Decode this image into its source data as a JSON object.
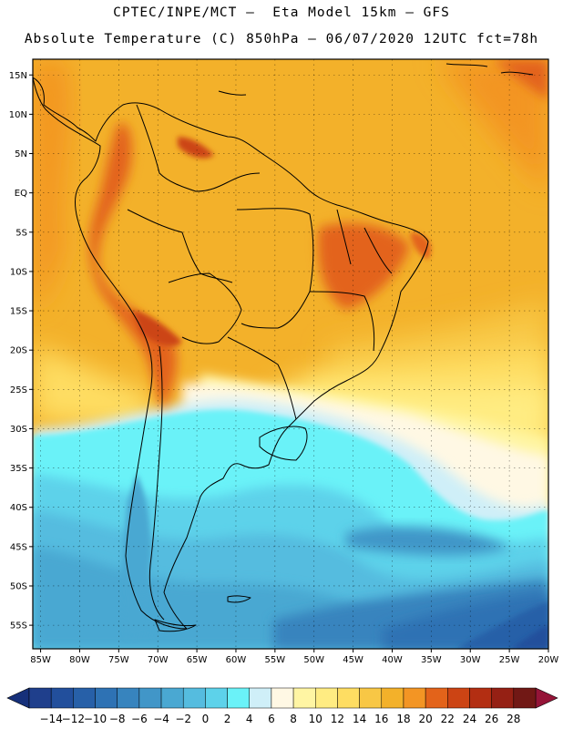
{
  "header": {
    "line1": "CPTEC/INPE/MCT –  Eta Model 15km – GFS",
    "line2": "Absolute Temperature (C) 850hPa – 06/07/2020 12UTC fct=78h"
  },
  "map": {
    "lat_range": [
      -58,
      17
    ],
    "lon_range": [
      -86,
      -20
    ],
    "lat_ticks": [
      {
        "value": 15,
        "label": "15N"
      },
      {
        "value": 10,
        "label": "10N"
      },
      {
        "value": 5,
        "label": "5N"
      },
      {
        "value": 0,
        "label": "EQ"
      },
      {
        "value": -5,
        "label": "5S"
      },
      {
        "value": -10,
        "label": "10S"
      },
      {
        "value": -15,
        "label": "15S"
      },
      {
        "value": -20,
        "label": "20S"
      },
      {
        "value": -25,
        "label": "25S"
      },
      {
        "value": -30,
        "label": "30S"
      },
      {
        "value": -35,
        "label": "35S"
      },
      {
        "value": -40,
        "label": "40S"
      },
      {
        "value": -45,
        "label": "45S"
      },
      {
        "value": -50,
        "label": "50S"
      },
      {
        "value": -55,
        "label": "55S"
      }
    ],
    "lon_ticks": [
      {
        "value": -85,
        "label": "85W"
      },
      {
        "value": -80,
        "label": "80W"
      },
      {
        "value": -75,
        "label": "75W"
      },
      {
        "value": -70,
        "label": "70W"
      },
      {
        "value": -65,
        "label": "65W"
      },
      {
        "value": -60,
        "label": "60W"
      },
      {
        "value": -55,
        "label": "55W"
      },
      {
        "value": -50,
        "label": "50W"
      },
      {
        "value": -45,
        "label": "45W"
      },
      {
        "value": -40,
        "label": "40W"
      },
      {
        "value": -35,
        "label": "35W"
      },
      {
        "value": -30,
        "label": "30W"
      },
      {
        "value": -25,
        "label": "25W"
      },
      {
        "value": -20,
        "label": "20W"
      }
    ]
  },
  "colorbar": {
    "labels": [
      "-14",
      "-12",
      "-10",
      "-8",
      "-6",
      "-4",
      "-2",
      "0",
      "2",
      "4",
      "6",
      "8",
      "10",
      "12",
      "14",
      "16",
      "18",
      "20",
      "22",
      "24",
      "26",
      "28"
    ],
    "colors": [
      "#1f3f8c",
      "#224f9c",
      "#2760a8",
      "#2e72b4",
      "#3784be",
      "#4196c8",
      "#4aa8d2",
      "#55bcdf",
      "#5dd2ea",
      "#6af2f8",
      "#cfeff8",
      "#fff8e4",
      "#fff5a3",
      "#ffec82",
      "#fedd62",
      "#f8c745",
      "#f3b12a",
      "#f39524",
      "#e3631a",
      "#cc4414",
      "#b32e12",
      "#952014",
      "#711815"
    ],
    "under_color": "#16307a",
    "over_color": "#951438"
  }
}
